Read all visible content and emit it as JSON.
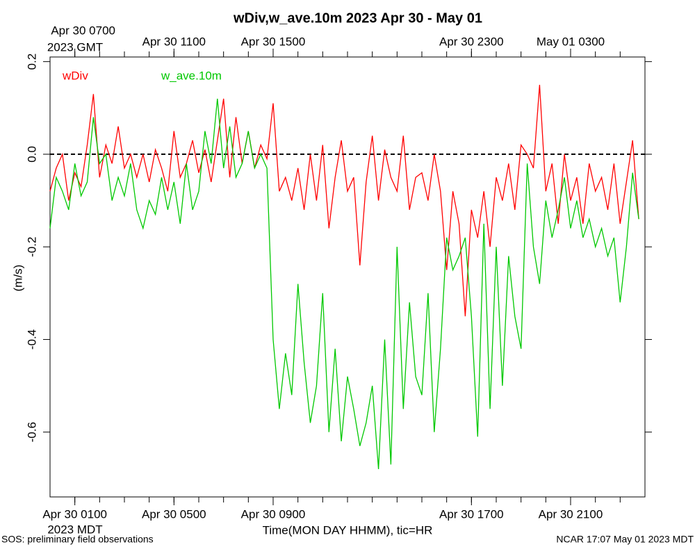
{
  "chart_data": {
    "type": "line",
    "title": "wDiv,w_ave.10m 2023 Apr 30 - May 01",
    "y_label": "(m/s)",
    "x_label": "Time(MON DAY HHMM), tic=HR",
    "x_timezone_label": "2023 MDT",
    "x2_timezone_label": "2023 GMT",
    "footer_left": "SOS: preliminary field observations",
    "footer_right": "NCAR 17:07 May 01 2023 MDT",
    "reference_line": 0,
    "xlim": [
      "2023-04-30T00:00",
      "2023-05-01T00:00"
    ],
    "ylim": [
      -0.74,
      0.21
    ],
    "yticks": [
      {
        "value": 0.2,
        "label": "0.2"
      },
      {
        "value": 0,
        "label": "0.0"
      },
      -0.2,
      -0.4,
      -0.6
    ],
    "xticks": [
      {
        "value": "2023-04-30T01:00",
        "label": "Apr 30 0100"
      },
      {
        "value": "2023-04-30T05:00",
        "label": "Apr 30 0500"
      },
      {
        "value": "2023-04-30T09:00",
        "label": "Apr 30 0900"
      },
      {
        "value": "2023-04-30T17:00",
        "label": "Apr 30 1700"
      },
      {
        "value": "2023-04-30T21:00",
        "label": "Apr 30 2100"
      }
    ],
    "x2ticks": [
      {
        "value": "2023-04-30T01:00",
        "label": "Apr 30 0700"
      },
      {
        "value": "2023-04-30T05:00",
        "label": "Apr 30 1100"
      },
      {
        "value": "2023-04-30T09:00",
        "label": "Apr 30 1500"
      },
      {
        "value": "2023-04-30T17:00",
        "label": "Apr 30 2300"
      },
      {
        "value": "2023-04-30T21:00",
        "label": "May 01 0300"
      }
    ],
    "xminor_ticks": [
      "2023-04-30T01:00",
      "2023-04-30T02:00",
      "2023-04-30T03:00",
      "2023-04-30T04:00",
      "2023-04-30T05:00",
      "2023-04-30T06:00",
      "2023-04-30T07:00",
      "2023-04-30T08:00",
      "2023-04-30T09:00",
      "2023-04-30T10:00",
      "2023-04-30T11:00",
      "2023-04-30T12:00",
      "2023-04-30T13:00",
      "2023-04-30T14:00",
      "2023-04-30T15:00",
      "2023-04-30T16:00",
      "2023-04-30T17:00",
      "2023-04-30T18:00",
      "2023-04-30T19:00",
      "2023-04-30T20:00",
      "2023-04-30T21:00",
      "2023-04-30T22:00",
      "2023-04-30T23:00"
    ],
    "x": [
      "2023-04-30T00:00",
      "2023-04-30T00:15",
      "2023-04-30T00:30",
      "2023-04-30T00:45",
      "2023-04-30T01:00",
      "2023-04-30T01:15",
      "2023-04-30T01:30",
      "2023-04-30T01:45",
      "2023-04-30T02:00",
      "2023-04-30T02:15",
      "2023-04-30T02:30",
      "2023-04-30T02:45",
      "2023-04-30T03:00",
      "2023-04-30T03:15",
      "2023-04-30T03:30",
      "2023-04-30T03:45",
      "2023-04-30T04:00",
      "2023-04-30T04:15",
      "2023-04-30T04:30",
      "2023-04-30T04:45",
      "2023-04-30T05:00",
      "2023-04-30T05:15",
      "2023-04-30T05:30",
      "2023-04-30T05:45",
      "2023-04-30T06:00",
      "2023-04-30T06:15",
      "2023-04-30T06:30",
      "2023-04-30T06:45",
      "2023-04-30T07:00",
      "2023-04-30T07:15",
      "2023-04-30T07:30",
      "2023-04-30T07:45",
      "2023-04-30T08:00",
      "2023-04-30T08:15",
      "2023-04-30T08:30",
      "2023-04-30T08:45",
      "2023-04-30T09:00",
      "2023-04-30T09:15",
      "2023-04-30T09:30",
      "2023-04-30T09:45",
      "2023-04-30T10:00",
      "2023-04-30T10:15",
      "2023-04-30T10:30",
      "2023-04-30T10:45",
      "2023-04-30T11:00",
      "2023-04-30T11:15",
      "2023-04-30T11:30",
      "2023-04-30T11:45",
      "2023-04-30T12:00",
      "2023-04-30T12:15",
      "2023-04-30T12:30",
      "2023-04-30T12:45",
      "2023-04-30T13:00",
      "2023-04-30T13:15",
      "2023-04-30T13:30",
      "2023-04-30T13:45",
      "2023-04-30T14:00",
      "2023-04-30T14:15",
      "2023-04-30T14:30",
      "2023-04-30T14:45",
      "2023-04-30T15:00",
      "2023-04-30T15:15",
      "2023-04-30T15:30",
      "2023-04-30T15:45",
      "2023-04-30T16:00",
      "2023-04-30T16:15",
      "2023-04-30T16:30",
      "2023-04-30T16:45",
      "2023-04-30T17:00",
      "2023-04-30T17:15",
      "2023-04-30T17:30",
      "2023-04-30T17:45",
      "2023-04-30T18:00",
      "2023-04-30T18:15",
      "2023-04-30T18:30",
      "2023-04-30T18:45",
      "2023-04-30T19:00",
      "2023-04-30T19:15",
      "2023-04-30T19:30",
      "2023-04-30T19:45",
      "2023-04-30T20:00",
      "2023-04-30T20:15",
      "2023-04-30T20:30",
      "2023-04-30T20:45",
      "2023-04-30T21:00",
      "2023-04-30T21:15",
      "2023-04-30T21:30",
      "2023-04-30T21:45",
      "2023-04-30T22:00",
      "2023-04-30T22:15",
      "2023-04-30T22:30",
      "2023-04-30T22:45",
      "2023-04-30T23:00",
      "2023-04-30T23:15",
      "2023-04-30T23:30",
      "2023-04-30T23:45"
    ],
    "series": [
      {
        "name": "wDiv",
        "color": "#ff0000",
        "values": [
          -0.08,
          -0.03,
          0.0,
          -0.1,
          -0.04,
          -0.07,
          0.02,
          0.13,
          -0.05,
          0.02,
          -0.02,
          0.06,
          -0.03,
          0.0,
          -0.05,
          0.0,
          -0.06,
          0.01,
          -0.03,
          -0.08,
          0.05,
          -0.05,
          -0.02,
          0.03,
          -0.04,
          0.01,
          -0.06,
          0.03,
          0.12,
          -0.05,
          0.08,
          -0.02,
          0.05,
          -0.03,
          0.02,
          -0.01,
          0.11,
          -0.08,
          -0.05,
          -0.1,
          -0.03,
          -0.12,
          0.0,
          -0.1,
          0.02,
          -0.16,
          -0.05,
          0.03,
          -0.08,
          -0.05,
          -0.24,
          -0.06,
          0.04,
          -0.1,
          0.01,
          -0.05,
          -0.08,
          0.04,
          -0.12,
          -0.05,
          -0.04,
          -0.1,
          0.0,
          -0.08,
          -0.25,
          -0.08,
          -0.15,
          -0.35,
          -0.12,
          -0.18,
          -0.08,
          -0.2,
          -0.05,
          -0.1,
          -0.02,
          -0.12,
          0.02,
          0.0,
          -0.03,
          0.15,
          -0.08,
          -0.02,
          -0.15,
          0.0,
          -0.1,
          -0.05,
          -0.15,
          -0.02,
          -0.08,
          -0.05,
          -0.12,
          -0.02,
          -0.15,
          -0.06,
          0.03,
          -0.14
        ]
      },
      {
        "name": "w_ave.10m",
        "color": "#00c800",
        "values": [
          -0.16,
          -0.05,
          -0.08,
          -0.12,
          -0.02,
          -0.09,
          -0.06,
          0.08,
          -0.02,
          0.0,
          -0.1,
          -0.05,
          -0.09,
          -0.02,
          -0.12,
          -0.16,
          -0.1,
          -0.13,
          -0.05,
          -0.12,
          -0.06,
          -0.15,
          -0.02,
          -0.12,
          -0.08,
          0.05,
          -0.02,
          0.12,
          -0.03,
          0.06,
          -0.05,
          -0.02,
          0.05,
          -0.03,
          0.0,
          -0.03,
          -0.4,
          -0.55,
          -0.43,
          -0.52,
          -0.28,
          -0.45,
          -0.58,
          -0.5,
          -0.3,
          -0.6,
          -0.42,
          -0.62,
          -0.48,
          -0.55,
          -0.63,
          -0.58,
          -0.5,
          -0.68,
          -0.4,
          -0.67,
          -0.2,
          -0.55,
          -0.32,
          -0.48,
          -0.52,
          -0.3,
          -0.6,
          -0.42,
          -0.18,
          -0.25,
          -0.22,
          -0.18,
          -0.35,
          -0.61,
          -0.15,
          -0.55,
          -0.2,
          -0.5,
          -0.22,
          -0.35,
          -0.42,
          -0.02,
          -0.2,
          -0.28,
          -0.1,
          -0.18,
          -0.12,
          -0.05,
          -0.16,
          -0.1,
          -0.18,
          -0.14,
          -0.2,
          -0.16,
          -0.22,
          -0.18,
          -0.32,
          -0.2,
          -0.04,
          -0.14
        ]
      }
    ]
  }
}
